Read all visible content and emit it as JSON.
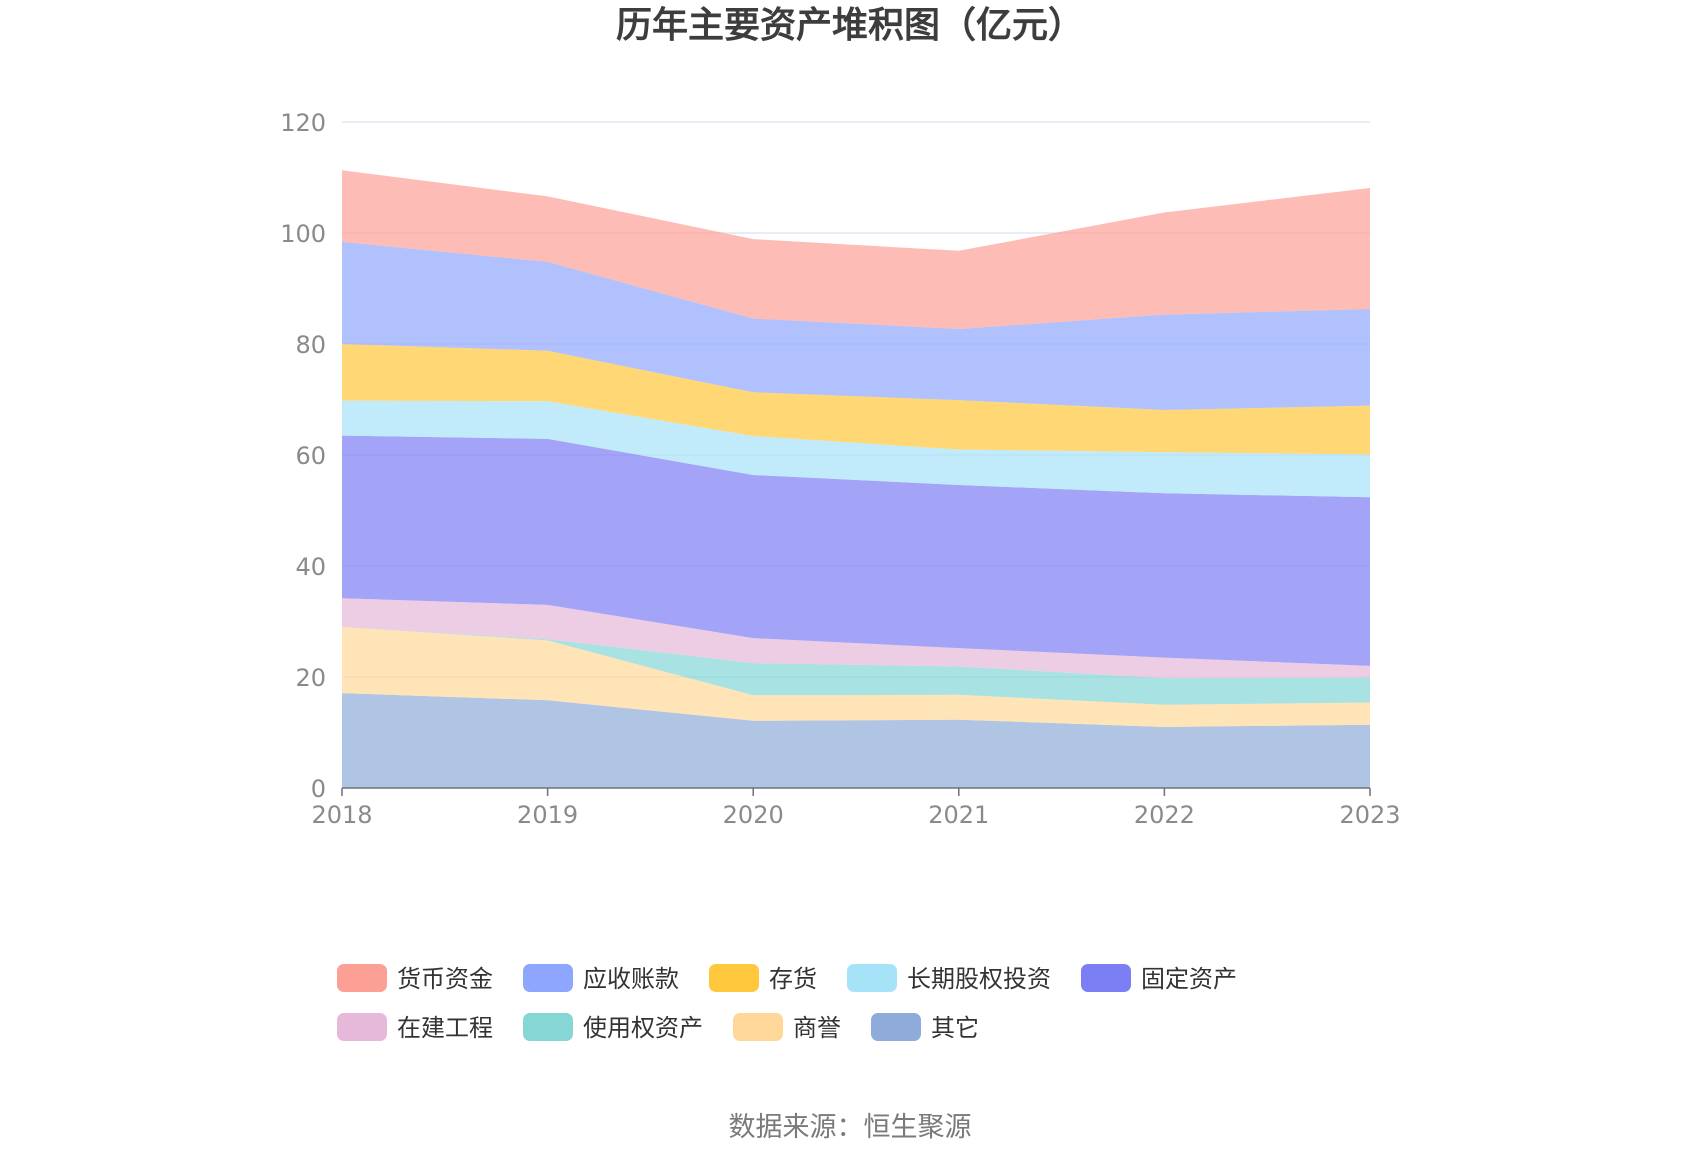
{
  "chart_data": {
    "type": "area",
    "stacked": true,
    "title": "历年主要资产堆积图（亿元）",
    "x": [
      "2018",
      "2019",
      "2020",
      "2021",
      "2022",
      "2023"
    ],
    "ylim": [
      0,
      120
    ],
    "yticks": [
      "0",
      "20",
      "40",
      "60",
      "80",
      "100",
      "120"
    ],
    "grid": true,
    "legend_position": "bottom",
    "series": [
      {
        "name": "其它",
        "color": "#8eabd9",
        "values": [
          17.1,
          15.8,
          12.1,
          12.3,
          11.0,
          11.4
        ]
      },
      {
        "name": "商誉",
        "color": "#ffd899",
        "values": [
          11.9,
          10.8,
          4.6,
          4.5,
          4.0,
          4.0
        ]
      },
      {
        "name": "使用权资产",
        "color": "#85d6d5",
        "values": [
          0.0,
          0.2,
          5.8,
          5.1,
          4.8,
          4.5
        ]
      },
      {
        "name": "在建工程",
        "color": "#e6b8d9",
        "values": [
          5.2,
          6.2,
          4.5,
          3.3,
          3.7,
          2.1
        ]
      },
      {
        "name": "固定资产",
        "color": "#7c7ef3",
        "values": [
          29.3,
          29.9,
          29.4,
          29.4,
          29.6,
          30.4
        ]
      },
      {
        "name": "长期股权投资",
        "color": "#a6e2f8",
        "values": [
          6.3,
          6.8,
          7.0,
          6.4,
          7.4,
          7.7
        ]
      },
      {
        "name": "存货",
        "color": "#ffc73b",
        "values": [
          10.2,
          9.1,
          7.9,
          8.9,
          7.6,
          8.8
        ]
      },
      {
        "name": "应收账款",
        "color": "#8ea6fe",
        "values": [
          18.4,
          16.0,
          13.3,
          12.8,
          17.2,
          17.4
        ]
      },
      {
        "name": "货币资金",
        "color": "#fc9f95",
        "values": [
          12.9,
          11.8,
          14.3,
          14.1,
          18.4,
          21.8
        ]
      }
    ],
    "legend_order": [
      "货币资金",
      "应收账款",
      "存货",
      "长期股权投资",
      "固定资产",
      "在建工程",
      "使用权资产",
      "商誉",
      "其它"
    ]
  },
  "source_text": "数据来源：恒生聚源"
}
